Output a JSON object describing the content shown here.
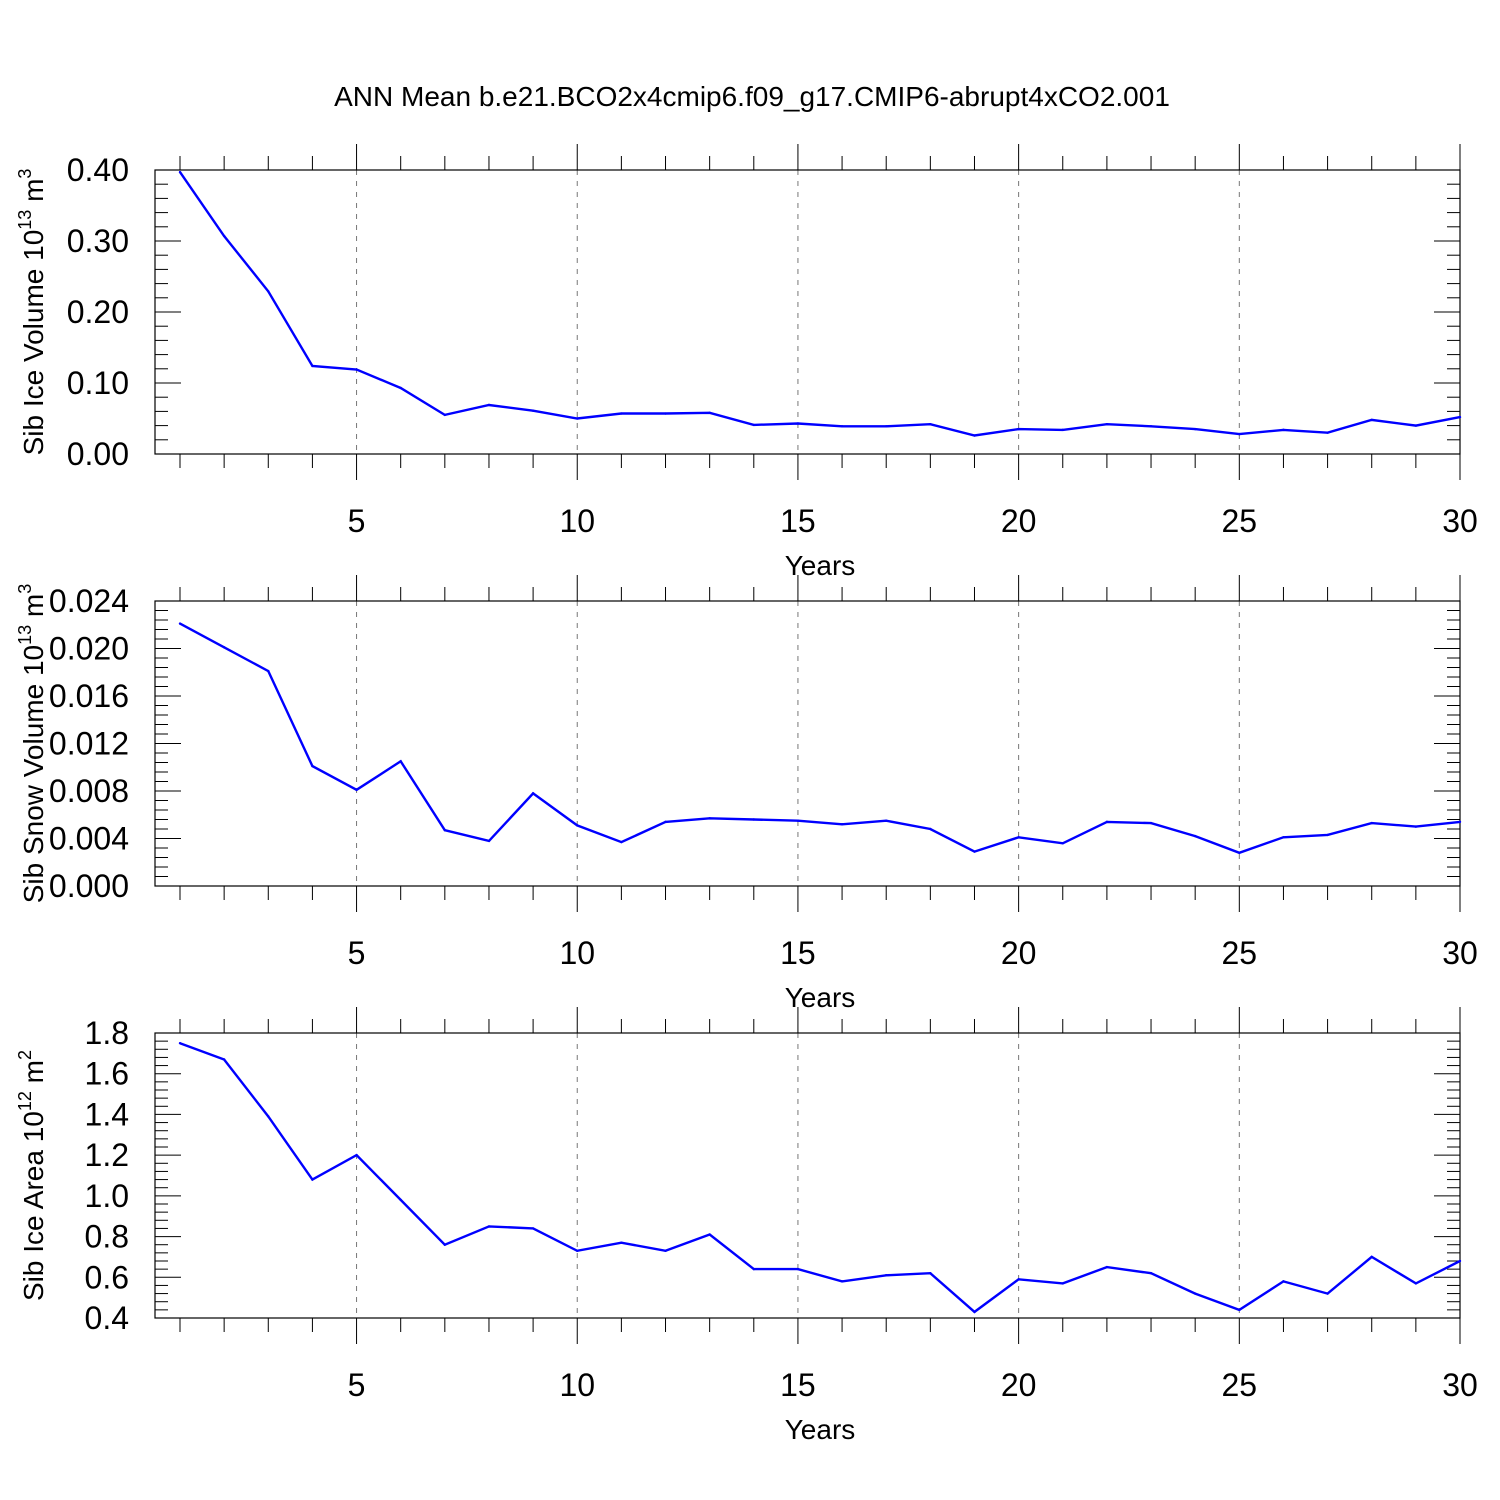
{
  "title": "ANN Mean b.e21.BCO2x4cmip6.f09_g17.CMIP6-abrupt4xCO2.001",
  "colors": {
    "line": "#0000ff",
    "axis": "#000000",
    "grid": "#777777"
  },
  "chart_data": [
    {
      "type": "line",
      "xlabel": "Years",
      "ylabel_main": "Sib Ice Volume 10",
      "ylabel_exp": "13",
      "ylabel_unit": " m",
      "ylabel_unit_exp": "3",
      "xlim": [
        1,
        30
      ],
      "ylim": [
        0,
        0.4
      ],
      "yticks": [
        "0.00",
        "0.10",
        "0.20",
        "0.30",
        "0.40"
      ],
      "ytick_values": [
        0,
        0.1,
        0.2,
        0.3,
        0.4
      ],
      "xticks": [
        "5",
        "10",
        "15",
        "20",
        "25",
        "30"
      ],
      "xtick_values": [
        5,
        10,
        15,
        20,
        25,
        30
      ],
      "grid": "vertical dashed at major x ticks",
      "x": [
        1,
        2,
        3,
        4,
        5,
        6,
        7,
        8,
        9,
        10,
        11,
        12,
        13,
        14,
        15,
        16,
        17,
        18,
        19,
        20,
        21,
        22,
        23,
        24,
        25,
        26,
        27,
        28,
        29,
        30
      ],
      "values": [
        0.397,
        0.307,
        0.229,
        0.124,
        0.119,
        0.093,
        0.055,
        0.069,
        0.061,
        0.05,
        0.057,
        0.057,
        0.058,
        0.041,
        0.043,
        0.039,
        0.039,
        0.042,
        0.026,
        0.035,
        0.034,
        0.042,
        0.039,
        0.035,
        0.028,
        0.034,
        0.03,
        0.048,
        0.04,
        0.052
      ]
    },
    {
      "type": "line",
      "xlabel": "Years",
      "ylabel_main": "Sib Snow Volume 10",
      "ylabel_exp": "13",
      "ylabel_unit": " m",
      "ylabel_unit_exp": "3",
      "xlim": [
        1,
        30
      ],
      "ylim": [
        0,
        0.024
      ],
      "yticks": [
        "0.000",
        "0.004",
        "0.008",
        "0.012",
        "0.016",
        "0.020",
        "0.024"
      ],
      "ytick_values": [
        0,
        0.004,
        0.008,
        0.012,
        0.016,
        0.02,
        0.024
      ],
      "xticks": [
        "5",
        "10",
        "15",
        "20",
        "25",
        "30"
      ],
      "xtick_values": [
        5,
        10,
        15,
        20,
        25,
        30
      ],
      "grid": "vertical dashed at major x ticks",
      "x": [
        1,
        2,
        3,
        4,
        5,
        6,
        7,
        8,
        9,
        10,
        11,
        12,
        13,
        14,
        15,
        16,
        17,
        18,
        19,
        20,
        21,
        22,
        23,
        24,
        25,
        26,
        27,
        28,
        29,
        30
      ],
      "values": [
        0.0221,
        0.0201,
        0.0181,
        0.0101,
        0.0081,
        0.0105,
        0.0047,
        0.0038,
        0.0078,
        0.0051,
        0.0037,
        0.0054,
        0.0057,
        0.0056,
        0.0055,
        0.0052,
        0.0055,
        0.0048,
        0.0029,
        0.0041,
        0.0036,
        0.0054,
        0.0053,
        0.0042,
        0.0028,
        0.0041,
        0.0043,
        0.0053,
        0.005,
        0.0054
      ]
    },
    {
      "type": "line",
      "xlabel": "Years",
      "ylabel_main": "Sib Ice Area 10",
      "ylabel_exp": "12",
      "ylabel_unit": " m",
      "ylabel_unit_exp": "2",
      "xlim": [
        1,
        30
      ],
      "ylim": [
        0.4,
        1.8
      ],
      "yticks": [
        "0.4",
        "0.6",
        "0.8",
        "1.0",
        "1.2",
        "1.4",
        "1.6",
        "1.8"
      ],
      "ytick_values": [
        0.4,
        0.6,
        0.8,
        1.0,
        1.2,
        1.4,
        1.6,
        1.8
      ],
      "xticks": [
        "5",
        "10",
        "15",
        "20",
        "25",
        "30"
      ],
      "xtick_values": [
        5,
        10,
        15,
        20,
        25,
        30
      ],
      "grid": "vertical dashed at major x ticks",
      "x": [
        1,
        2,
        3,
        4,
        5,
        6,
        7,
        8,
        9,
        10,
        11,
        12,
        13,
        14,
        15,
        16,
        17,
        18,
        19,
        20,
        21,
        22,
        23,
        24,
        25,
        26,
        27,
        28,
        29,
        30
      ],
      "values": [
        1.75,
        1.67,
        1.39,
        1.08,
        1.2,
        0.98,
        0.76,
        0.85,
        0.84,
        0.73,
        0.77,
        0.73,
        0.81,
        0.64,
        0.64,
        0.58,
        0.61,
        0.62,
        0.43,
        0.59,
        0.57,
        0.65,
        0.62,
        0.52,
        0.44,
        0.58,
        0.52,
        0.7,
        0.57,
        0.68
      ]
    }
  ]
}
